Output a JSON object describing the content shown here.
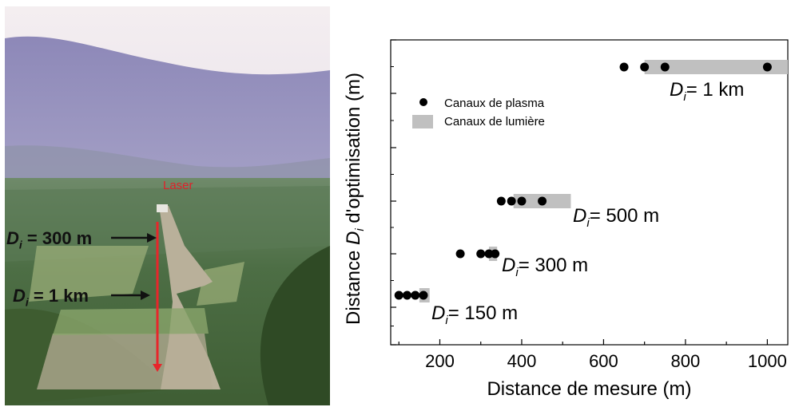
{
  "photo": {
    "laser_label": "Laser",
    "marker_300": {
      "prefix": "D",
      "sub": "i",
      "text": " = 300 m"
    },
    "marker_1km": {
      "prefix": "D",
      "sub": "i",
      "text": " = 1 km"
    },
    "colors": {
      "sky": "#c9c3dc",
      "laser": "#e8262b",
      "arrow": "#111111"
    }
  },
  "chart_data": {
    "type": "scatter",
    "xlabel": "Distance de mesure (m)",
    "ylabel": {
      "prefix": "Distance ",
      "var": "D",
      "sub": "i",
      "suffix": " d'optimisation (m)"
    },
    "xlim": [
      80,
      1050
    ],
    "x_ticks": [
      200,
      400,
      600,
      800,
      1000
    ],
    "grid": false,
    "legend_position": "top-left",
    "legend": [
      {
        "label": "Canaux de plasma",
        "marker": "circle",
        "color": "#000000"
      },
      {
        "label": "Canaux de lumière",
        "marker": "bar",
        "color": "#c0c0c0"
      }
    ],
    "groups": [
      {
        "label": {
          "var": "D",
          "sub": "i",
          "text": "= 150 m"
        },
        "plasma_x": [
          100,
          120,
          140,
          160
        ],
        "light_range": [
          150,
          175
        ]
      },
      {
        "label": {
          "var": "D",
          "sub": "i",
          "text": "= 300 m"
        },
        "plasma_x": [
          250,
          300,
          320,
          335
        ],
        "light_range": [
          320,
          340
        ]
      },
      {
        "label": {
          "var": "D",
          "sub": "i",
          "text": "= 500 m"
        },
        "plasma_x": [
          350,
          375,
          400,
          450
        ],
        "light_range": [
          380,
          520
        ]
      },
      {
        "label": {
          "var": "D",
          "sub": "i",
          "text": "= 1 km"
        },
        "plasma_x": [
          650,
          700,
          750,
          1000
        ],
        "light_range": [
          700,
          1050
        ]
      }
    ]
  }
}
